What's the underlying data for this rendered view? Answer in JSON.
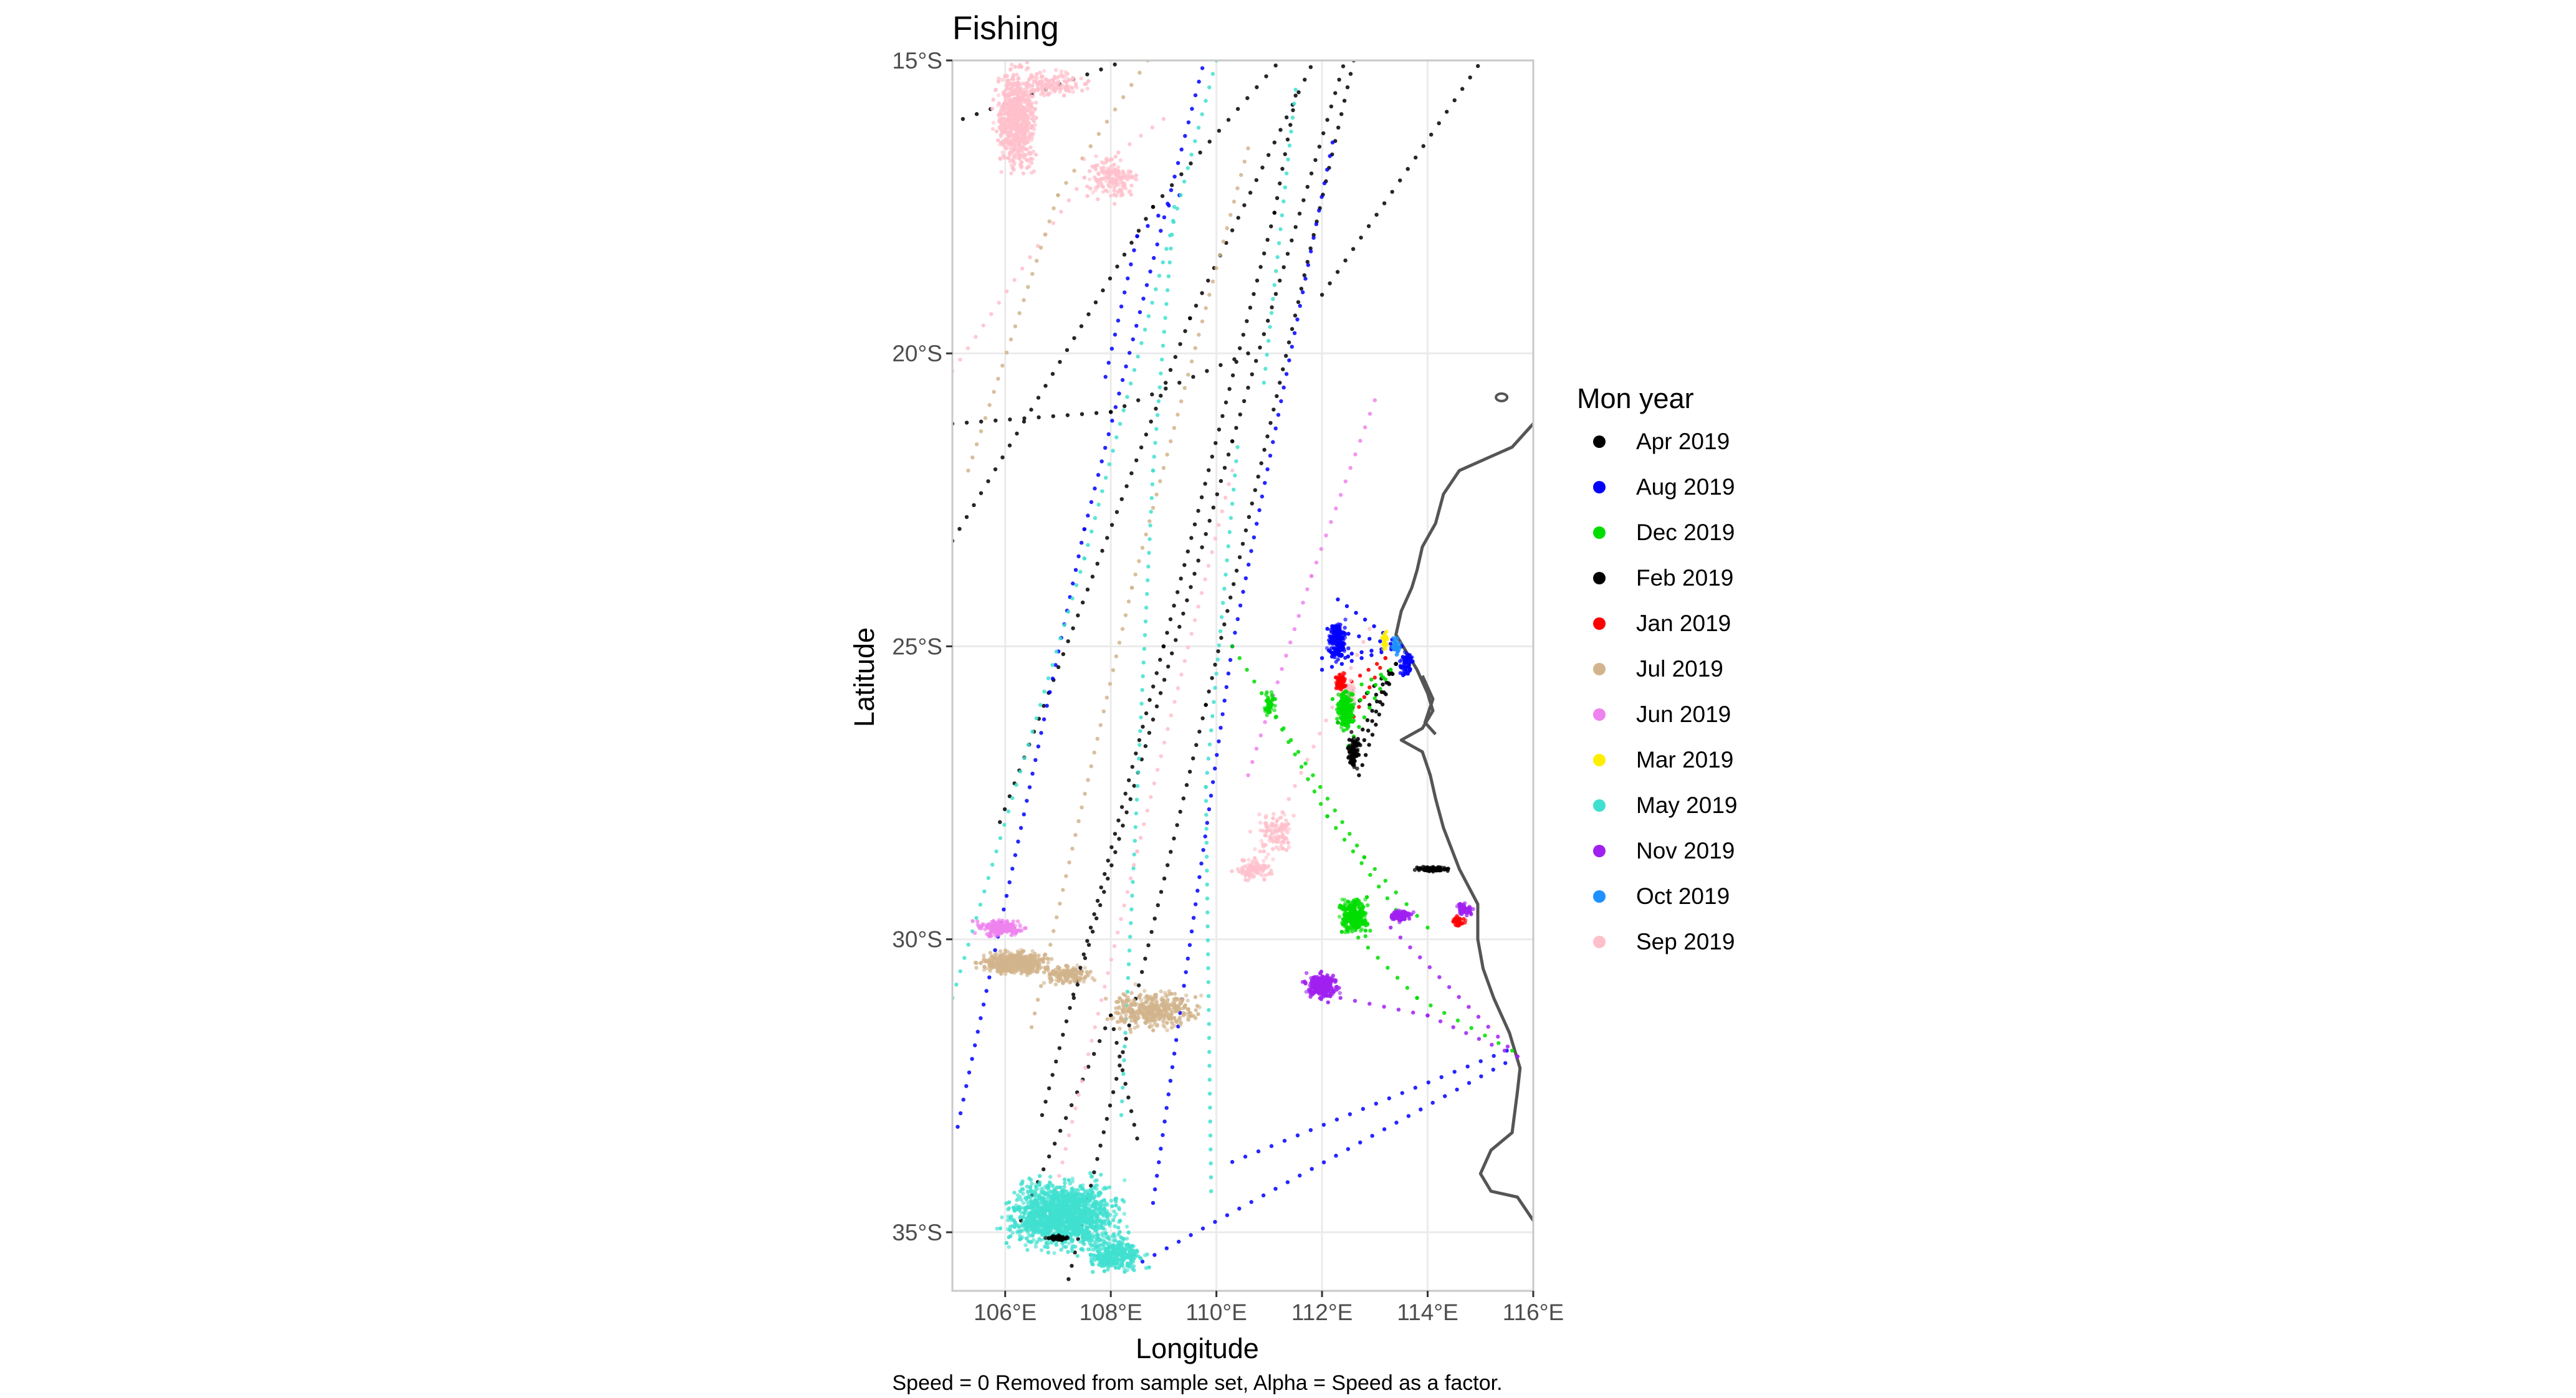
{
  "chart_data": {
    "type": "scatter",
    "title": "Fishing",
    "xlabel": "Longitude",
    "ylabel": "Latitude",
    "caption": "Speed = 0 Removed from sample set, Alpha = Speed as a factor.",
    "xlim": [
      105,
      116
    ],
    "ylim": [
      -36,
      -15
    ],
    "x_ticks": [
      106,
      108,
      110,
      112,
      114,
      116
    ],
    "x_tick_labels": [
      "106°E",
      "108°E",
      "110°E",
      "112°E",
      "114°E",
      "116°E"
    ],
    "y_ticks": [
      -15,
      -20,
      -25,
      -30,
      -35
    ],
    "y_tick_labels": [
      "15°S",
      "20°S",
      "25°S",
      "30°S",
      "35°S"
    ],
    "grid": true,
    "legend": {
      "title": "Mon year",
      "position": "right",
      "entries": [
        {
          "label": "Apr 2019",
          "color": "#000000"
        },
        {
          "label": "Aug 2019",
          "color": "#0000ff"
        },
        {
          "label": "Dec 2019",
          "color": "#00dd00"
        },
        {
          "label": "Feb 2019",
          "color": "#000000"
        },
        {
          "label": "Jan 2019",
          "color": "#ff0000"
        },
        {
          "label": "Jul 2019",
          "color": "#d2b48c"
        },
        {
          "label": "Jun 2019",
          "color": "#ee82ee"
        },
        {
          "label": "Mar 2019",
          "color": "#ffee00"
        },
        {
          "label": "May 2019",
          "color": "#40e0d0"
        },
        {
          "label": "Nov 2019",
          "color": "#a020f0"
        },
        {
          "label": "Oct 2019",
          "color": "#1e90ff"
        },
        {
          "label": "Sep 2019",
          "color": "#ffc0cb"
        }
      ]
    },
    "coastline": [
      [
        116,
        -21.2
      ],
      [
        115.6,
        -21.6
      ],
      [
        115.1,
        -21.8
      ],
      [
        114.6,
        -22.0
      ],
      [
        114.3,
        -22.4
      ],
      [
        114.15,
        -22.9
      ],
      [
        113.9,
        -23.3
      ],
      [
        113.8,
        -23.7
      ],
      [
        113.7,
        -24.0
      ],
      [
        113.5,
        -24.4
      ],
      [
        113.4,
        -24.8
      ],
      [
        113.6,
        -25.1
      ],
      [
        113.8,
        -25.4
      ],
      [
        114.0,
        -25.8
      ],
      [
        114.1,
        -26.1
      ],
      [
        113.9,
        -26.4
      ],
      [
        113.5,
        -26.6
      ],
      [
        113.9,
        -26.8
      ],
      [
        114.05,
        -27.2
      ],
      [
        114.15,
        -27.6
      ],
      [
        114.3,
        -28.1
      ],
      [
        114.6,
        -28.8
      ],
      [
        114.95,
        -29.4
      ],
      [
        114.95,
        -30.0
      ],
      [
        115.05,
        -30.5
      ],
      [
        115.25,
        -31.0
      ],
      [
        115.55,
        -31.6
      ],
      [
        115.75,
        -32.2
      ],
      [
        115.7,
        -32.6
      ],
      [
        115.6,
        -33.3
      ],
      [
        115.2,
        -33.6
      ],
      [
        115.0,
        -34.0
      ],
      [
        115.2,
        -34.3
      ],
      [
        115.7,
        -34.4
      ],
      [
        116.0,
        -34.8
      ]
    ],
    "tracks": [
      {
        "month": "Apr 2019",
        "color": "#000000",
        "points": [
          [
            105.2,
            -16.0
          ],
          [
            108.6,
            -14.9
          ]
        ]
      },
      {
        "month": "Apr 2019",
        "color": "#000000",
        "points": [
          [
            105.0,
            -23.2
          ],
          [
            108.8,
            -17.5
          ],
          [
            111.3,
            -14.9
          ]
        ]
      },
      {
        "month": "Apr 2019",
        "color": "#000000",
        "points": [
          [
            105.9,
            -28.0
          ],
          [
            109.5,
            -19.4
          ],
          [
            111.9,
            -14.9
          ]
        ]
      },
      {
        "month": "Apr 2019",
        "color": "#000000",
        "points": [
          [
            107.2,
            -35.8
          ],
          [
            109.8,
            -26.0
          ],
          [
            112.6,
            -15.0
          ]
        ]
      },
      {
        "month": "Apr 2019",
        "color": "#000000",
        "points": [
          [
            112.0,
            -19.0
          ],
          [
            115.1,
            -14.9
          ]
        ]
      },
      {
        "month": "Apr 2019",
        "color": "#000000",
        "points": [
          [
            105.0,
            -21.2
          ],
          [
            108.0,
            -21.0
          ],
          [
            110.6,
            -20.0
          ]
        ]
      },
      {
        "month": "Feb 2019",
        "color": "#000000",
        "points": [
          [
            107.3,
            -31.0
          ],
          [
            110.3,
            -21.5
          ],
          [
            112.4,
            -15.1
          ]
        ]
      },
      {
        "month": "Feb 2019",
        "color": "#000000",
        "points": [
          [
            106.7,
            -33.0
          ],
          [
            109.0,
            -25.0
          ],
          [
            111.1,
            -17.6
          ],
          [
            111.5,
            -15.6
          ]
        ]
      },
      {
        "month": "Feb 2019",
        "color": "#000000",
        "points": [
          [
            106.3,
            -34.8
          ],
          [
            108.0,
            -31.3
          ],
          [
            108.5,
            -33.4
          ]
        ]
      },
      {
        "month": "Aug 2019",
        "color": "#0000ff",
        "points": [
          [
            105.1,
            -33.2
          ],
          [
            107.5,
            -23.0
          ],
          [
            109.8,
            -14.9
          ]
        ]
      },
      {
        "month": "Aug 2019",
        "color": "#0000ff",
        "points": [
          [
            108.8,
            -34.5
          ],
          [
            110.3,
            -25.0
          ],
          [
            112.2,
            -16.4
          ]
        ]
      },
      {
        "month": "Aug 2019",
        "color": "#0000ff",
        "points": [
          [
            108.6,
            -35.5
          ],
          [
            115.7,
            -32.0
          ]
        ]
      },
      {
        "month": "Aug 2019",
        "color": "#0000ff",
        "points": [
          [
            110.3,
            -33.8
          ],
          [
            115.5,
            -31.9
          ]
        ]
      },
      {
        "month": "Aug 2019",
        "color": "#0000ff",
        "points": [
          [
            107.9,
            -20.4
          ],
          [
            108.5,
            -18.0
          ],
          [
            109.3,
            -17.3
          ]
        ]
      },
      {
        "month": "May 2019",
        "color": "#40e0d0",
        "points": [
          [
            105.0,
            -31.0
          ],
          [
            107.5,
            -23.5
          ],
          [
            110.0,
            -15.0
          ]
        ]
      },
      {
        "month": "May 2019",
        "color": "#40e0d0",
        "points": [
          [
            110.9,
            -20.5
          ],
          [
            111.5,
            -15.5
          ]
        ]
      },
      {
        "month": "May 2019",
        "color": "#40e0d0",
        "points": [
          [
            108.2,
            -33.0
          ],
          [
            108.8,
            -22.0
          ],
          [
            109.2,
            -17.5
          ]
        ]
      },
      {
        "month": "May 2019",
        "color": "#40e0d0",
        "points": [
          [
            109.9,
            -34.3
          ],
          [
            109.8,
            -27.4
          ],
          [
            110.4,
            -21.6
          ]
        ]
      },
      {
        "month": "Sep 2019",
        "color": "#ffc0cb",
        "points": [
          [
            105.0,
            -20.3
          ],
          [
            107.5,
            -17.0
          ],
          [
            109.0,
            -16.0
          ]
        ]
      },
      {
        "month": "Sep 2019",
        "color": "#ffc0cb",
        "points": [
          [
            106.9,
            -34.5
          ],
          [
            108.5,
            -28.5
          ],
          [
            110.3,
            -22.0
          ]
        ]
      },
      {
        "month": "Sep 2019",
        "color": "#ffc0cb",
        "points": [
          [
            110.9,
            -28.5
          ],
          [
            112.9,
            -24.7
          ]
        ]
      },
      {
        "month": "Jul 2019",
        "color": "#d2b48c",
        "points": [
          [
            106.5,
            -31.5
          ],
          [
            108.4,
            -24.0
          ],
          [
            110.6,
            -16.5
          ]
        ]
      },
      {
        "month": "Jul 2019",
        "color": "#d2b48c",
        "points": [
          [
            105.3,
            -22.0
          ],
          [
            107.0,
            -17.3
          ],
          [
            108.7,
            -15.0
          ]
        ]
      },
      {
        "month": "Jun 2019",
        "color": "#ee82ee",
        "points": [
          [
            110.6,
            -27.2
          ],
          [
            111.8,
            -23.8
          ],
          [
            113.0,
            -20.8
          ]
        ]
      },
      {
        "month": "Dec 2019",
        "color": "#00dd00",
        "points": [
          [
            110.3,
            -25.0
          ],
          [
            112.8,
            -28.6
          ],
          [
            114.0,
            -29.8
          ]
        ]
      },
      {
        "month": "Dec 2019",
        "color": "#00dd00",
        "points": [
          [
            111.0,
            -26.0
          ],
          [
            112.1,
            -27.9
          ],
          [
            113.4,
            -29.5
          ]
        ]
      },
      {
        "month": "Dec 2019",
        "color": "#00dd00",
        "points": [
          [
            112.5,
            -29.8
          ],
          [
            113.8,
            -31.0
          ],
          [
            115.6,
            -31.9
          ]
        ]
      },
      {
        "month": "Nov 2019",
        "color": "#a020f0",
        "points": [
          [
            113.3,
            -29.8
          ],
          [
            115.7,
            -32.0
          ]
        ]
      },
      {
        "month": "Nov 2019",
        "color": "#a020f0",
        "points": [
          [
            111.8,
            -30.9
          ],
          [
            114.0,
            -31.3
          ],
          [
            115.7,
            -32.0
          ]
        ]
      }
    ],
    "clusters": [
      {
        "month": "Sep 2019",
        "color": "#ffc0cb",
        "center": [
          106.2,
          -16.0
        ],
        "spread": [
          0.5,
          1.1
        ],
        "count": 700
      },
      {
        "month": "Sep 2019",
        "color": "#ffc0cb",
        "center": [
          108.0,
          -17.0
        ],
        "spread": [
          0.6,
          0.5
        ],
        "count": 160
      },
      {
        "month": "Sep 2019",
        "color": "#ffc0cb",
        "center": [
          106.9,
          -15.4
        ],
        "spread": [
          0.9,
          0.3
        ],
        "count": 140
      },
      {
        "month": "Sep 2019",
        "color": "#ffc0cb",
        "center": [
          111.1,
          -28.2
        ],
        "spread": [
          0.5,
          0.5
        ],
        "count": 110
      },
      {
        "month": "Sep 2019",
        "color": "#ffc0cb",
        "center": [
          110.7,
          -28.8
        ],
        "spread": [
          0.45,
          0.25
        ],
        "count": 90
      },
      {
        "month": "Sep 2019",
        "color": "#ffc0cb",
        "center": [
          112.5,
          -25.8
        ],
        "spread": [
          0.18,
          0.3
        ],
        "count": 60
      },
      {
        "month": "Jun 2019",
        "color": "#ee82ee",
        "center": [
          105.9,
          -29.8
        ],
        "spread": [
          0.6,
          0.2
        ],
        "count": 170
      },
      {
        "month": "Jul 2019",
        "color": "#d2b48c",
        "center": [
          106.2,
          -30.4
        ],
        "spread": [
          0.8,
          0.25
        ],
        "count": 480
      },
      {
        "month": "Jul 2019",
        "color": "#d2b48c",
        "center": [
          108.8,
          -31.2
        ],
        "spread": [
          1.1,
          0.45
        ],
        "count": 380
      },
      {
        "month": "Jul 2019",
        "color": "#d2b48c",
        "center": [
          107.2,
          -30.6
        ],
        "spread": [
          0.6,
          0.2
        ],
        "count": 160
      },
      {
        "month": "May 2019",
        "color": "#40e0d0",
        "center": [
          107.1,
          -34.7
        ],
        "spread": [
          1.4,
          0.75
        ],
        "count": 1500
      },
      {
        "month": "May 2019",
        "color": "#40e0d0",
        "center": [
          108.1,
          -35.4
        ],
        "spread": [
          0.7,
          0.35
        ],
        "count": 300
      },
      {
        "month": "Aug 2019",
        "color": "#0000ff",
        "center": [
          112.3,
          -24.9
        ],
        "spread": [
          0.25,
          0.45
        ],
        "count": 180
      },
      {
        "month": "Aug 2019",
        "color": "#0000ff",
        "center": [
          113.6,
          -25.3
        ],
        "spread": [
          0.18,
          0.25
        ],
        "count": 60
      },
      {
        "month": "Dec 2019",
        "color": "#00dd00",
        "center": [
          112.45,
          -26.1
        ],
        "spread": [
          0.22,
          0.45
        ],
        "count": 220
      },
      {
        "month": "Dec 2019",
        "color": "#00dd00",
        "center": [
          112.6,
          -29.6
        ],
        "spread": [
          0.35,
          0.4
        ],
        "count": 240
      },
      {
        "month": "Dec 2019",
        "color": "#00dd00",
        "center": [
          111.0,
          -26.0
        ],
        "spread": [
          0.15,
          0.25
        ],
        "count": 40
      },
      {
        "month": "Jan 2019",
        "color": "#ff0000",
        "center": [
          112.35,
          -25.6
        ],
        "spread": [
          0.15,
          0.2
        ],
        "count": 70
      },
      {
        "month": "Jan 2019",
        "color": "#ff0000",
        "center": [
          114.6,
          -29.7
        ],
        "spread": [
          0.15,
          0.15
        ],
        "count": 40
      },
      {
        "month": "Feb 2019",
        "color": "#000000",
        "center": [
          112.6,
          -26.8
        ],
        "spread": [
          0.15,
          0.35
        ],
        "count": 90
      },
      {
        "month": "Feb 2019",
        "color": "#000000",
        "center": [
          114.1,
          -28.8
        ],
        "spread": [
          0.4,
          0.05
        ],
        "count": 90
      },
      {
        "month": "Feb 2019",
        "color": "#000000",
        "center": [
          107.0,
          -35.1
        ],
        "spread": [
          0.3,
          0.07
        ],
        "count": 50
      },
      {
        "month": "Mar 2019",
        "color": "#ffee00",
        "center": [
          113.2,
          -24.9
        ],
        "spread": [
          0.08,
          0.2
        ],
        "count": 25
      },
      {
        "month": "Oct 2019",
        "color": "#1e90ff",
        "center": [
          113.4,
          -25.0
        ],
        "spread": [
          0.12,
          0.2
        ],
        "count": 40
      },
      {
        "month": "Nov 2019",
        "color": "#a020f0",
        "center": [
          112.0,
          -30.8
        ],
        "spread": [
          0.4,
          0.3
        ],
        "count": 240
      },
      {
        "month": "Nov 2019",
        "color": "#a020f0",
        "center": [
          113.5,
          -29.6
        ],
        "spread": [
          0.3,
          0.12
        ],
        "count": 90
      },
      {
        "month": "Nov 2019",
        "color": "#a020f0",
        "center": [
          114.7,
          -29.5
        ],
        "spread": [
          0.2,
          0.15
        ],
        "count": 60
      }
    ],
    "fans": [
      {
        "month": "Aug 2019",
        "color": "#0000ff",
        "origin": [
          113.5,
          -25.0
        ],
        "targets": [
          [
            112.0,
            -25.2
          ],
          [
            112.1,
            -24.7
          ],
          [
            112.3,
            -24.2
          ],
          [
            112.0,
            -25.4
          ]
        ]
      },
      {
        "month": "Feb 2019",
        "color": "#000000",
        "origin": [
          113.4,
          -25.3
        ],
        "targets": [
          [
            112.7,
            -27.2
          ],
          [
            112.5,
            -26.9
          ],
          [
            112.8,
            -26.6
          ],
          [
            112.3,
            -26.3
          ],
          [
            112.9,
            -26.0
          ]
        ]
      },
      {
        "month": "Dec 2019",
        "color": "#00dd00",
        "origin": [
          113.3,
          -25.4
        ],
        "targets": [
          [
            112.3,
            -26.3
          ],
          [
            112.5,
            -26.7
          ],
          [
            112.2,
            -25.9
          ]
        ]
      },
      {
        "month": "Jan 2019",
        "color": "#ff0000",
        "origin": [
          113.2,
          -25.2
        ],
        "targets": [
          [
            112.4,
            -25.7
          ],
          [
            112.6,
            -26.2
          ]
        ]
      }
    ]
  }
}
